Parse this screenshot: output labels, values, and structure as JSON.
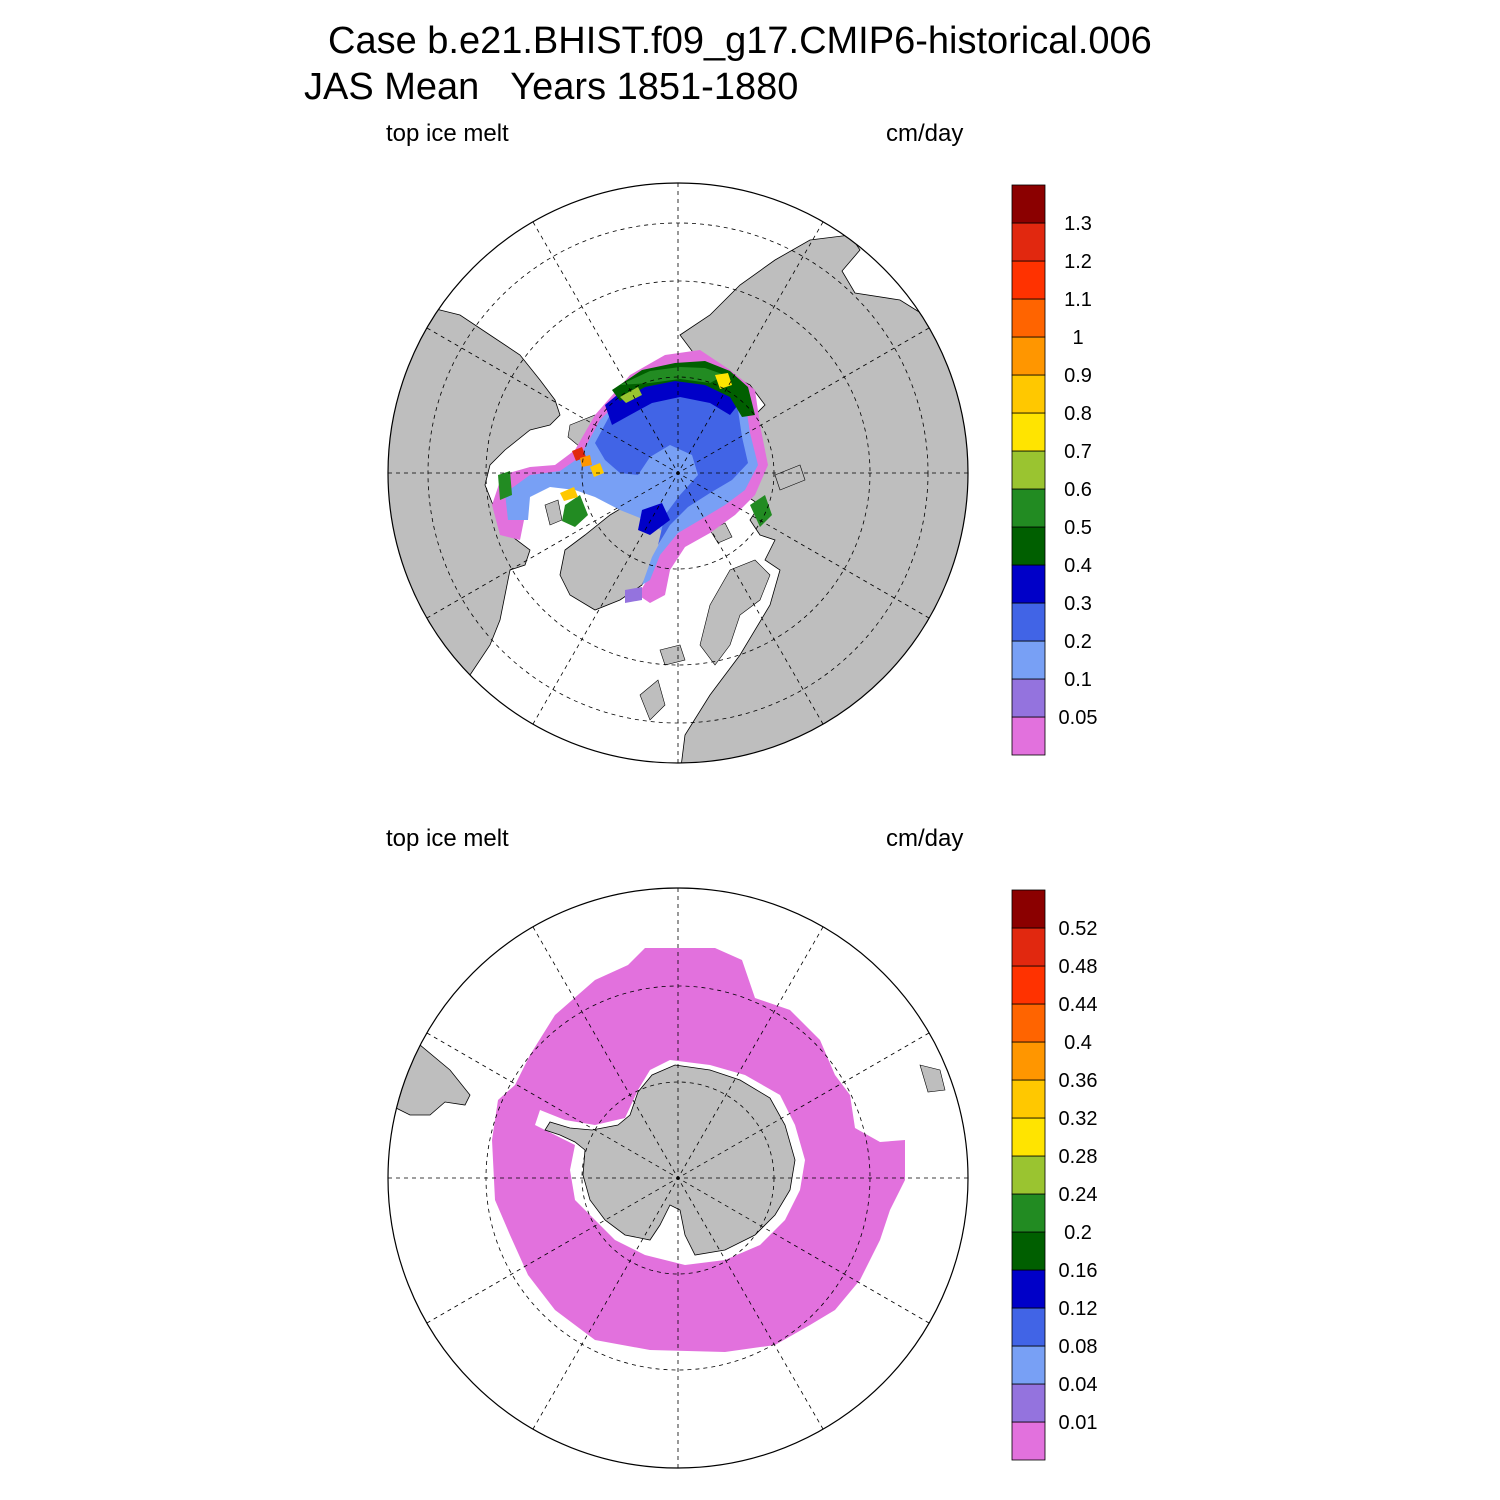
{
  "header": {
    "case_line": "Case b.e21.BHIST.f09_g17.CMIP6-historical.006",
    "period_line": "JAS Mean   Years 1851-1880"
  },
  "colors": {
    "land": "#bebebe",
    "palette": [
      "#e271dd",
      "#9473de",
      "#78a0f5",
      "#4164e6",
      "#0000c8",
      "#005f00",
      "#228b22",
      "#9ac430",
      "#ffe400",
      "#ffc800",
      "#ff9600",
      "#ff6400",
      "#ff3200",
      "#e1280f",
      "#8b0000"
    ]
  },
  "panels": [
    {
      "id": "north",
      "left_label": "top ice melt",
      "right_label": "cm/day",
      "colorbar_ticks": [
        "0.05",
        "0.1",
        "0.2",
        "0.3",
        "0.4",
        "0.5",
        "0.6",
        "0.7",
        "0.8",
        "0.9",
        "1",
        "1.1",
        "1.2",
        "1.3"
      ]
    },
    {
      "id": "south",
      "left_label": "top ice melt",
      "right_label": "cm/day",
      "colorbar_ticks": [
        "0.01",
        "0.04",
        "0.08",
        "0.12",
        "0.16",
        "0.2",
        "0.24",
        "0.28",
        "0.32",
        "0.36",
        "0.4",
        "0.44",
        "0.48",
        "0.52"
      ]
    }
  ]
}
